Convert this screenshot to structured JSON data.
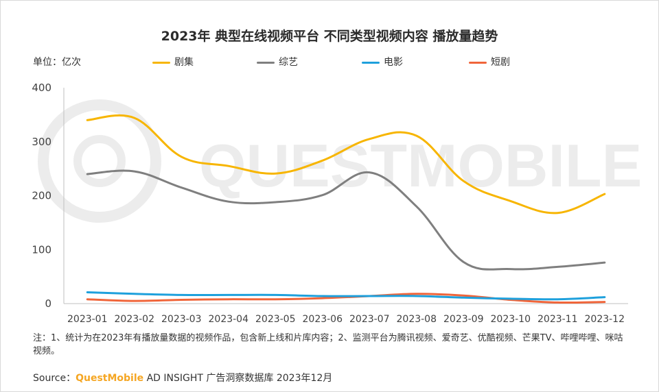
{
  "title": "2023年 典型在线视频平台 不同类型视频内容 播放量趋势",
  "unit_label": "单位：亿次",
  "watermark": "QUESTMOBILE",
  "note": "注：1、统计为在2023年有播放量数据的视频作品，包含新上线和片库内容；2、监测平台为腾讯视频、爱奇艺、优酷视频、芒果TV、哔哩哔哩、咪咕视频。",
  "source": {
    "prefix": "Source：",
    "brand": "QuestMobile",
    "suffix": " AD INSIGHT 广告洞察数据库 2023年12月"
  },
  "chart_data": {
    "type": "line",
    "title": "2023年 典型在线视频平台 不同类型视频内容 播放量趋势",
    "xlabel": "",
    "ylabel": "单位：亿次",
    "ylim": [
      0,
      400
    ],
    "yticks": [
      0,
      100,
      200,
      300,
      400
    ],
    "legend_position": "top",
    "categories": [
      "2023-01",
      "2023-02",
      "2023-03",
      "2023-04",
      "2023-05",
      "2023-06",
      "2023-07",
      "2023-08",
      "2023-09",
      "2023-10",
      "2023-11",
      "2023-12"
    ],
    "series": [
      {
        "name": "剧集",
        "color": "#f7b500",
        "values": [
          340,
          344,
          272,
          255,
          241,
          265,
          305,
          311,
          227,
          190,
          168,
          203
        ]
      },
      {
        "name": "综艺",
        "color": "#7f7f7f",
        "values": [
          240,
          245,
          215,
          189,
          188,
          201,
          243,
          180,
          77,
          64,
          68,
          76
        ]
      },
      {
        "name": "电影",
        "color": "#1ea0dc",
        "values": [
          21,
          18,
          16,
          16,
          16,
          14,
          14,
          14,
          11,
          9,
          8,
          12
        ]
      },
      {
        "name": "短剧",
        "color": "#f0653a",
        "values": [
          8,
          5,
          7,
          8,
          8,
          10,
          14,
          18,
          15,
          7,
          2,
          3
        ]
      }
    ]
  }
}
